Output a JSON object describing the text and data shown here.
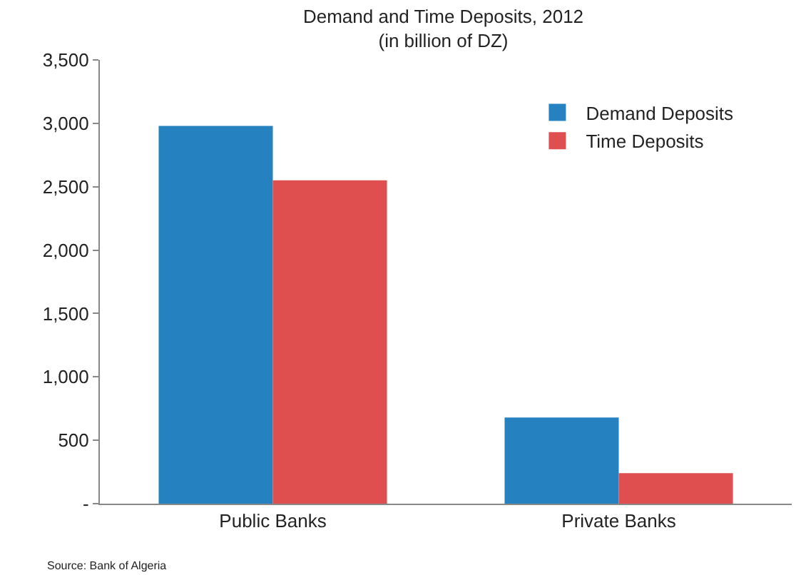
{
  "chart_data": {
    "type": "bar",
    "title": "Demand and Time Deposits, 2012",
    "subtitle": "(in billion of DZ)",
    "categories": [
      "Public Banks",
      "Private Banks"
    ],
    "series": [
      {
        "name": "Demand Deposits",
        "color": "#2581c0",
        "values": [
          2980,
          680
        ]
      },
      {
        "name": "Time Deposits",
        "color": "#df4f4f",
        "values": [
          2550,
          240
        ]
      }
    ],
    "ylim": [
      0,
      3500
    ],
    "yticks": [
      {
        "value": 0,
        "label": "-"
      },
      {
        "value": 500,
        "label": "500"
      },
      {
        "value": 1000,
        "label": "1,000"
      },
      {
        "value": 1500,
        "label": "1,500"
      },
      {
        "value": 2000,
        "label": "2,000"
      },
      {
        "value": 2500,
        "label": "2,500"
      },
      {
        "value": 3000,
        "label": "3,000"
      },
      {
        "value": 3500,
        "label": "3,500"
      }
    ],
    "legend": "top right",
    "annotations": [
      "Source: Bank of Algeria"
    ]
  }
}
